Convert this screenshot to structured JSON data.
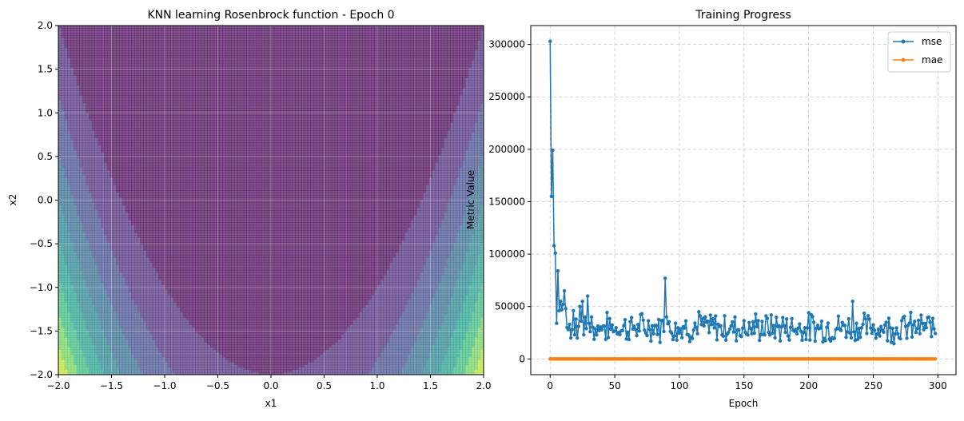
{
  "chart_data": [
    {
      "type": "heatmap",
      "title": "KNN learning Rosenbrock function - Epoch 0",
      "xlabel": "x1",
      "ylabel": "x2",
      "xlim": [
        -2.0,
        2.0
      ],
      "ylim": [
        -2.0,
        2.0
      ],
      "xticks": [
        "−2.0",
        "−1.5",
        "−1.0",
        "−0.5",
        "0.0",
        "0.5",
        "1.0",
        "1.5",
        "2.0"
      ],
      "yticks": [
        "−2.0",
        "−1.5",
        "−1.0",
        "−0.5",
        "0.0",
        "0.5",
        "1.0",
        "1.5",
        "2.0"
      ],
      "grid": true,
      "colormap": "viridis",
      "contour_levels": [
        0,
        400,
        800,
        1200,
        1600,
        2000,
        2400,
        2800,
        3200,
        3600,
        4000
      ],
      "colors": [
        "#440154",
        "#482878",
        "#3e4a89",
        "#31688e",
        "#26828e",
        "#1f9e89",
        "#35b779",
        "#6ece58",
        "#b5de2b",
        "#fde725"
      ]
    },
    {
      "type": "line",
      "title": "Training Progress",
      "xlabel": "Epoch",
      "ylabel": "Metric Value",
      "xlim": [
        -15,
        314
      ],
      "ylim": [
        -15000,
        318000
      ],
      "xticks": [
        0,
        50,
        100,
        150,
        200,
        250,
        300
      ],
      "yticks": [
        0,
        50000,
        100000,
        150000,
        200000,
        250000,
        300000
      ],
      "grid": true,
      "legend": "top-right",
      "series": [
        {
          "name": "mse",
          "color": "#1f77b4",
          "start_values": [
            303000,
            155000,
            199000,
            108000,
            101000,
            34000,
            84000,
            46000,
            55000,
            47000,
            52000,
            65000,
            48000,
            30000,
            28000,
            33000,
            20000,
            28000,
            46000,
            23000,
            38000,
            20000,
            31000,
            50000,
            36000,
            55000,
            23000,
            40000,
            29000,
            60000,
            34000,
            26000,
            40000
          ],
          "spikes": [
            [
              89,
              77000
            ],
            [
              234,
              55000
            ],
            [
              115,
              45000
            ],
            [
              90,
              40000
            ]
          ],
          "noise_mean": 30000,
          "noise_amp": 12000,
          "x_end": 298
        },
        {
          "name": "mae",
          "color": "#ff7f0e",
          "values_const": 0,
          "x_end": 298
        }
      ]
    }
  ]
}
